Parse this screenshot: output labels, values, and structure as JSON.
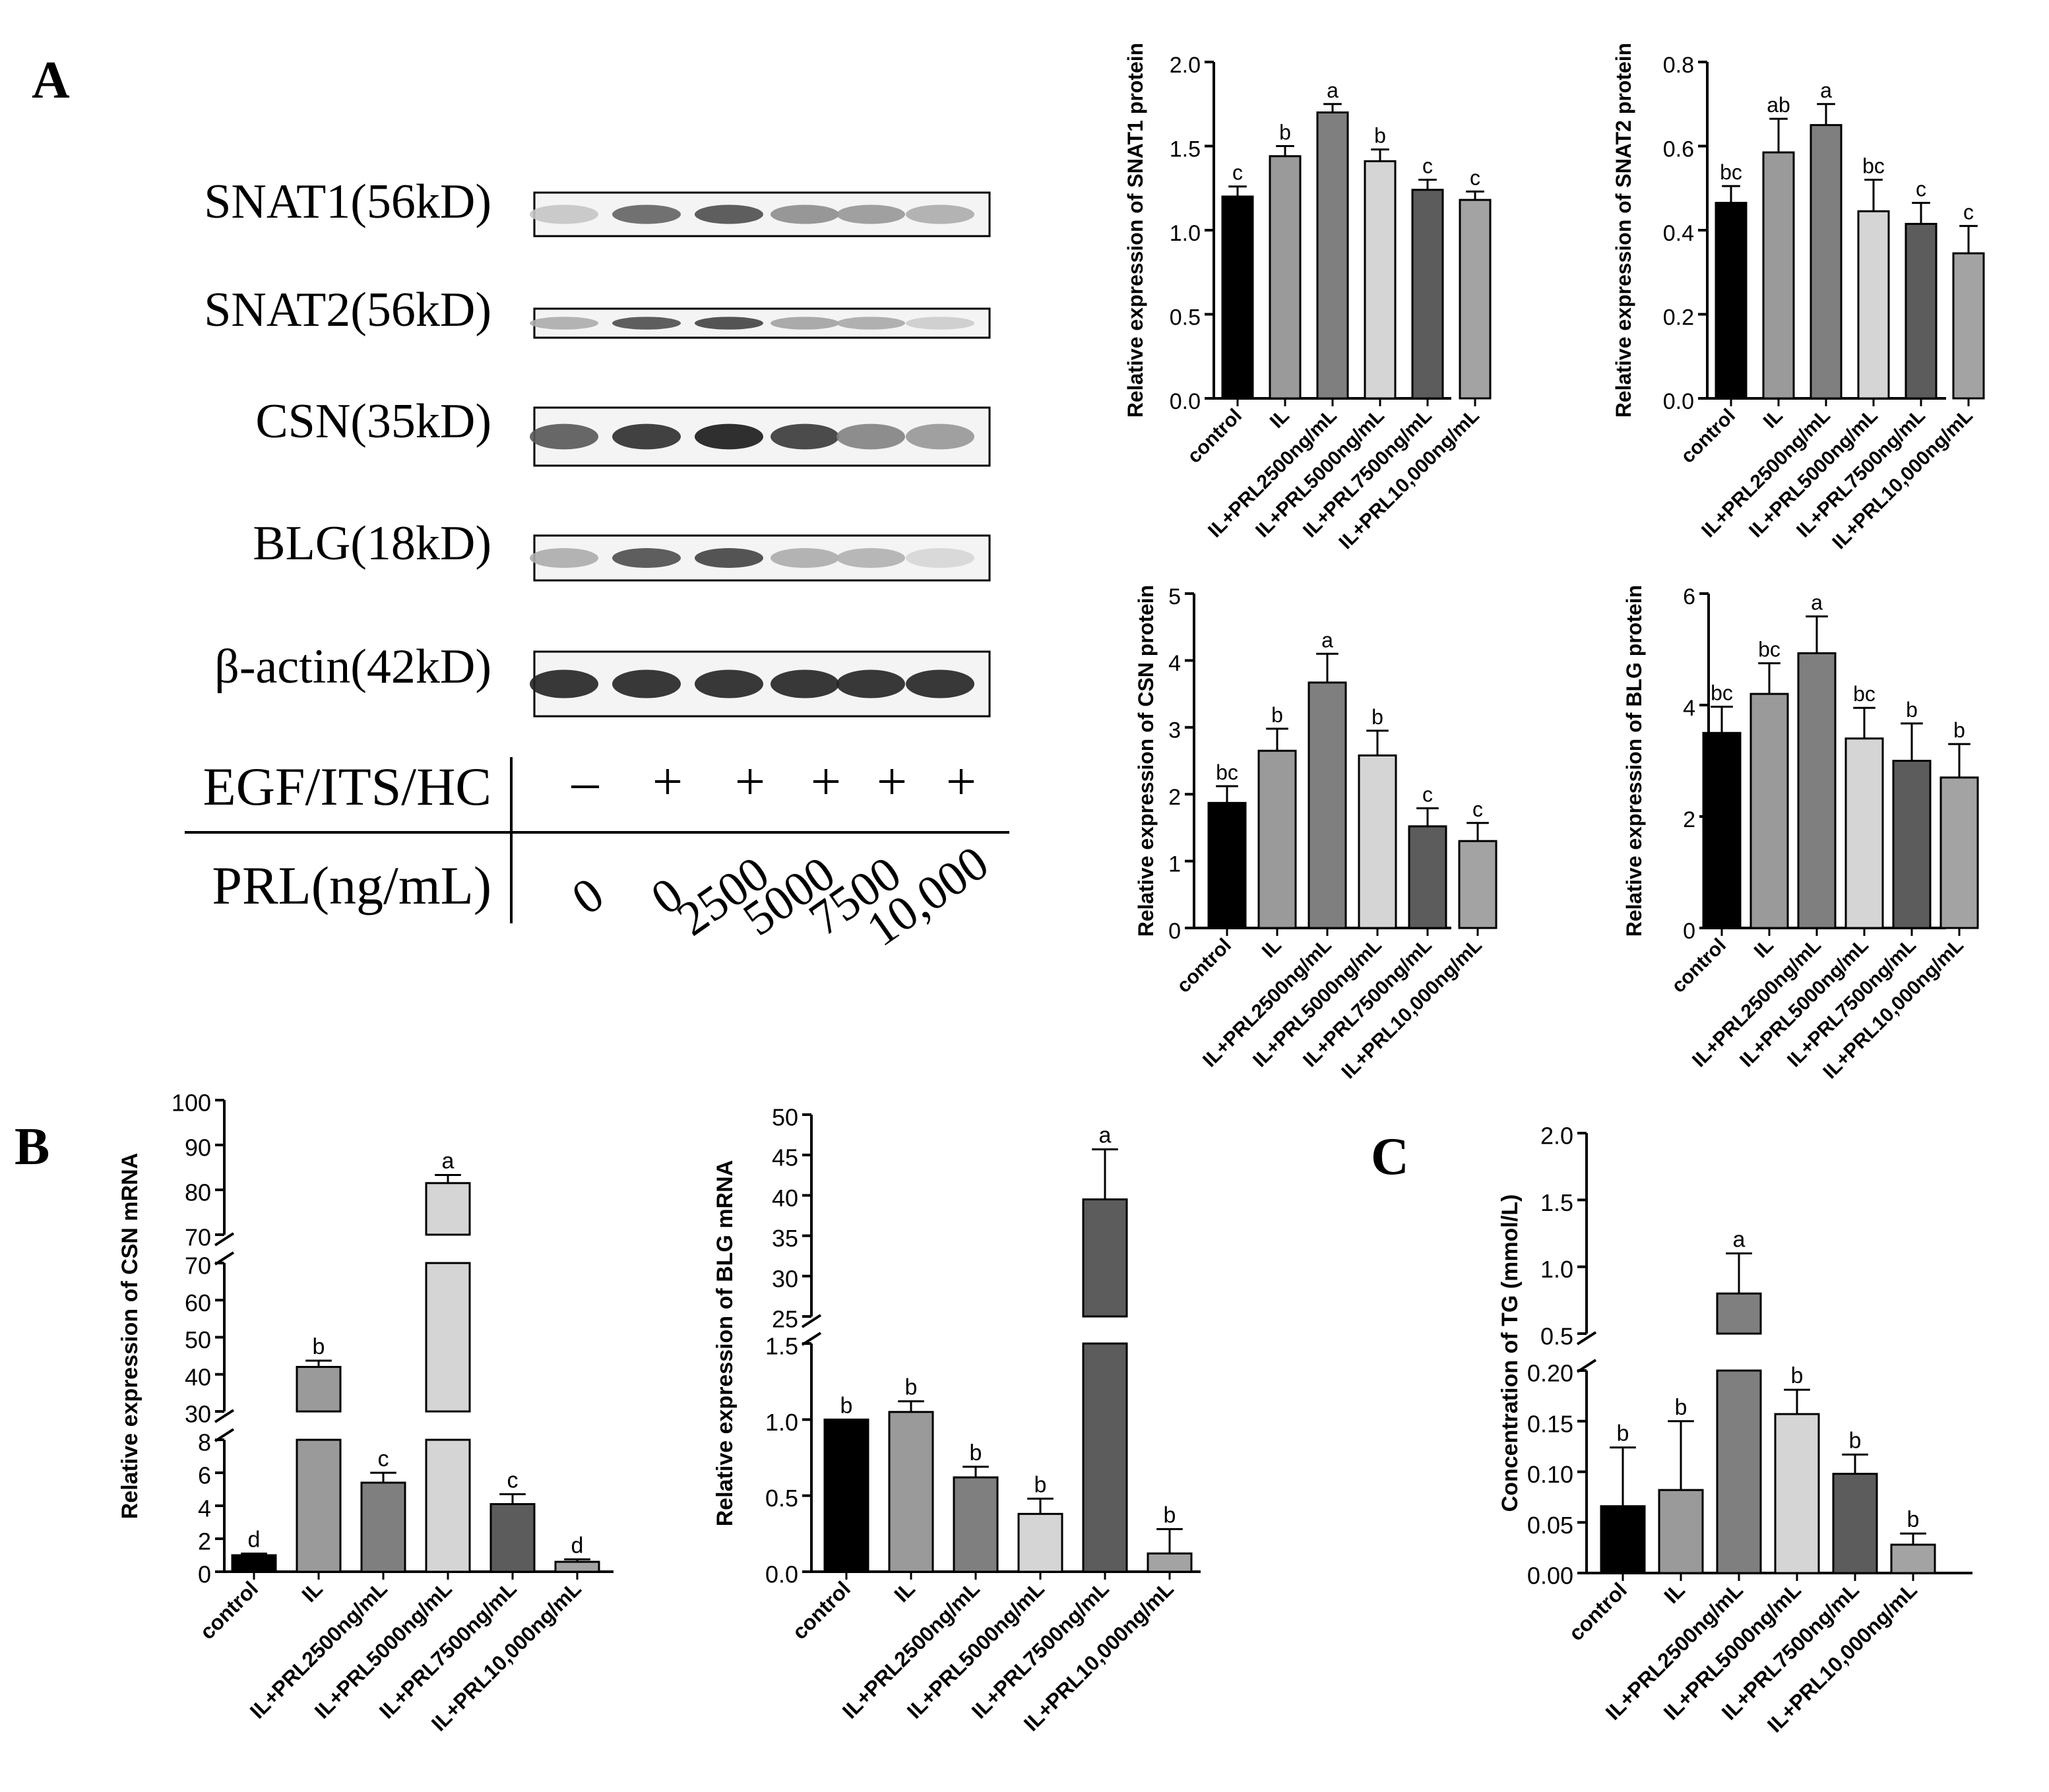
{
  "panel_labels": {
    "a": "A",
    "b": "B",
    "c": "C"
  },
  "blot": {
    "rows": [
      {
        "label": "SNAT1(56kD)",
        "band_intensity": [
          0.18,
          0.65,
          0.75,
          0.45,
          0.4,
          0.3
        ]
      },
      {
        "label": "SNAT2(56kD)",
        "band_intensity": [
          0.3,
          0.75,
          0.8,
          0.35,
          0.32,
          0.15
        ]
      },
      {
        "label": "CSN(35kD)",
        "band_intensity": [
          0.7,
          0.9,
          1.0,
          0.85,
          0.5,
          0.4
        ]
      },
      {
        "label": "BLG(18kD)",
        "band_intensity": [
          0.3,
          0.75,
          0.8,
          0.3,
          0.28,
          0.1
        ]
      },
      {
        "label": "β-actin(42kD)",
        "band_intensity": [
          0.95,
          0.95,
          0.95,
          0.95,
          0.95,
          0.95
        ]
      }
    ],
    "treatment_label": "EGF/ITS/HC",
    "treatment_signs": [
      "–",
      "+",
      "+",
      "+",
      "+",
      "+"
    ],
    "dose_label": "PRL(ng/mL)",
    "doses": [
      "0",
      "0",
      "2500",
      "5000",
      "7500",
      "10,000"
    ]
  },
  "colors": [
    "#000000",
    "#9a9a9a",
    "#7f7f7f",
    "#d5d5d5",
    "#5c5c5c",
    "#a3a3a3"
  ],
  "chart_data": [
    {
      "id": "snat1",
      "type": "bar",
      "ylabel": "Relative expression of SNAT1 protein",
      "categories": [
        "control",
        "IL",
        "IL+PRL2500ng/mL",
        "IL+PRL5000ng/mL",
        "IL+PRL7500ng/mL",
        "IL+PRL10,000ng/mL"
      ],
      "values": [
        1.2,
        1.44,
        1.7,
        1.41,
        1.24,
        1.18
      ],
      "errors": [
        0.06,
        0.06,
        0.05,
        0.07,
        0.06,
        0.05
      ],
      "letters": [
        "c",
        "b",
        "a",
        "b",
        "c",
        "c"
      ],
      "ylim": [
        0,
        2
      ],
      "ticks": [
        "0.0",
        "0.5",
        "1.0",
        "1.5",
        "2.0"
      ],
      "tick_values": [
        0,
        0.5,
        1,
        1.5,
        2
      ]
    },
    {
      "id": "snat2",
      "type": "bar",
      "ylabel": "Relative expression of SNAT2 protein",
      "categories": [
        "control",
        "IL",
        "IL+PRL2500ng/mL",
        "IL+PRL5000ng/mL",
        "IL+PRL7500ng/mL",
        "IL+PRL10,000ng/mL"
      ],
      "values": [
        0.465,
        0.585,
        0.65,
        0.445,
        0.415,
        0.345
      ],
      "errors": [
        0.04,
        0.08,
        0.05,
        0.075,
        0.05,
        0.065
      ],
      "letters": [
        "bc",
        "ab",
        "a",
        "bc",
        "c",
        "c"
      ],
      "ylim": [
        0,
        0.8
      ],
      "ticks": [
        "0.0",
        "0.2",
        "0.4",
        "0.6",
        "0.8"
      ],
      "tick_values": [
        0,
        0.2,
        0.4,
        0.6,
        0.8
      ]
    },
    {
      "id": "csn_protein",
      "type": "bar",
      "ylabel": "Relative expression of CSN protein",
      "categories": [
        "control",
        "IL",
        "IL+PRL2500ng/mL",
        "IL+PRL5000ng/mL",
        "IL+PRL7500ng/mL",
        "IL+PRL10,000ng/mL"
      ],
      "values": [
        1.87,
        2.65,
        3.67,
        2.58,
        1.52,
        1.3
      ],
      "errors": [
        0.25,
        0.33,
        0.43,
        0.37,
        0.27,
        0.27
      ],
      "letters": [
        "bc",
        "b",
        "a",
        "b",
        "c",
        "c"
      ],
      "ylim": [
        0,
        5
      ],
      "ticks": [
        "0",
        "1",
        "2",
        "3",
        "4",
        "5"
      ],
      "tick_values": [
        0,
        1,
        2,
        3,
        4,
        5
      ]
    },
    {
      "id": "blg_protein",
      "type": "bar",
      "ylabel": "Relative expression of BLG protein",
      "categories": [
        "control",
        "IL",
        "IL+PRL2500ng/mL",
        "IL+PRL5000ng/mL",
        "IL+PRL7500ng/mL",
        "IL+PRL10,000ng/mL"
      ],
      "values": [
        3.5,
        4.2,
        4.93,
        3.4,
        3.0,
        2.7
      ],
      "errors": [
        0.47,
        0.55,
        0.66,
        0.55,
        0.67,
        0.6
      ],
      "letters": [
        "bc",
        "bc",
        "a",
        "bc",
        "b",
        "b"
      ],
      "ylim": [
        0,
        6
      ],
      "ticks": [
        "0",
        "2",
        "4",
        "6"
      ],
      "tick_values": [
        0,
        2,
        4,
        6
      ]
    },
    {
      "id": "csn_mrna",
      "type": "bar",
      "ylabel": "Relative expression of CSN mRNA",
      "categories": [
        "control",
        "IL",
        "IL+PRL2500ng/mL",
        "IL+PRL5000ng/mL",
        "IL+PRL7500ng/mL",
        "IL+PRL10,000ng/mL"
      ],
      "values": [
        1,
        42,
        5.4,
        81.5,
        4.1,
        0.6
      ],
      "errors": [
        0.1,
        1.7,
        0.6,
        1.8,
        0.6,
        0.15
      ],
      "letters": [
        "d",
        "b",
        "c",
        "a",
        "c",
        "d"
      ],
      "ylim": [
        0,
        100
      ],
      "axis_break": true,
      "ticks": [
        "0",
        "2",
        "4",
        "6",
        "8",
        "30",
        "40",
        "50",
        "60",
        "70",
        "70",
        "80",
        "90",
        "100"
      ],
      "tick_values": [
        0,
        2,
        4,
        6,
        8,
        30,
        40,
        50,
        60,
        70,
        70,
        80,
        90,
        100
      ]
    },
    {
      "id": "blg_mrna",
      "type": "bar",
      "ylabel": "Relative expression of BLG mRNA",
      "categories": [
        "control",
        "IL",
        "IL+PRL2500ng/mL",
        "IL+PRL5000ng/mL",
        "IL+PRL7500ng/mL",
        "IL+PRL10,000ng/mL"
      ],
      "values": [
        1.0,
        1.05,
        0.62,
        0.38,
        39.5,
        0.12
      ],
      "errors": [
        0.0,
        0.07,
        0.07,
        0.1,
        6.2,
        0.16
      ],
      "letters": [
        "b",
        "b",
        "b",
        "b",
        "a",
        "b"
      ],
      "ylim": [
        0,
        50
      ],
      "axis_break": true,
      "ticks": [
        "0.0",
        "0.5",
        "1.0",
        "1.5",
        "25",
        "30",
        "35",
        "40",
        "45",
        "50"
      ],
      "tick_values": [
        0,
        0.5,
        1,
        1.5,
        25,
        30,
        35,
        40,
        45,
        50
      ]
    },
    {
      "id": "tg",
      "type": "bar",
      "ylabel": "Concentration of TG (mmol/L)",
      "categories": [
        "control",
        "IL",
        "IL+PRL2500ng/mL",
        "IL+PRL5000ng/mL",
        "IL+PRL7500ng/mL",
        "IL+PRL10,000ng/mL"
      ],
      "values": [
        0.066,
        0.082,
        0.8,
        0.157,
        0.098,
        0.028
      ],
      "errors": [
        0.058,
        0.068,
        0.3,
        0.024,
        0.019,
        0.011
      ],
      "letters": [
        "b",
        "b",
        "a",
        "b",
        "b",
        "b"
      ],
      "ylim": [
        0,
        2
      ],
      "axis_break": true,
      "ticks": [
        "0.00",
        "0.05",
        "0.10",
        "0.15",
        "0.20",
        "0.5",
        "1.0",
        "1.5",
        "2.0"
      ],
      "tick_values": [
        0,
        0.05,
        0.1,
        0.15,
        0.2,
        0.5,
        1.0,
        1.5,
        2.0
      ]
    }
  ]
}
